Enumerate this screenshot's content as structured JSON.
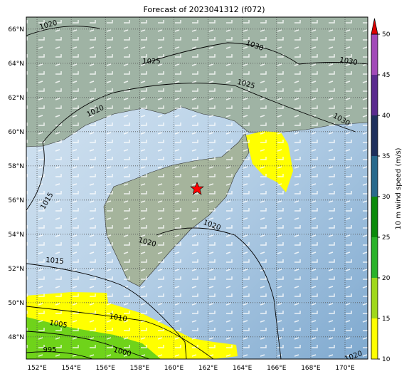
{
  "title": "Forecast of 2023041312 (f072)",
  "map": {
    "lon_range": [
      151.375,
      171.33
    ],
    "lat_range": [
      46.7,
      66.7
    ],
    "grid": true,
    "lon_ticks": [
      {
        "value": 152,
        "label": "152°E"
      },
      {
        "value": 154,
        "label": "154°E"
      },
      {
        "value": 156,
        "label": "156°E"
      },
      {
        "value": 158,
        "label": "158°E"
      },
      {
        "value": 160,
        "label": "160°E"
      },
      {
        "value": 162,
        "label": "162°E"
      },
      {
        "value": 164,
        "label": "164°E"
      },
      {
        "value": 166,
        "label": "166°E"
      },
      {
        "value": 168,
        "label": "168°E"
      },
      {
        "value": 170,
        "label": "170°E"
      }
    ],
    "lat_ticks": [
      {
        "value": 48,
        "label": "48°N"
      },
      {
        "value": 50,
        "label": "50°N"
      },
      {
        "value": 52,
        "label": "52°N"
      },
      {
        "value": 54,
        "label": "54°N"
      },
      {
        "value": 56,
        "label": "56°N"
      },
      {
        "value": 58,
        "label": "58°N"
      },
      {
        "value": 60,
        "label": "60°N"
      },
      {
        "value": 62,
        "label": "62°N"
      },
      {
        "value": 64,
        "label": "64°N"
      },
      {
        "value": 66,
        "label": "66°N"
      }
    ],
    "contour_labels": [
      1020,
      1030,
      1025,
      1030,
      1025,
      1020,
      1030,
      1015,
      1020,
      1020,
      1015,
      1010,
      1005,
      995,
      1000,
      1020
    ]
  },
  "colorbar": {
    "label": "10 m wind speed (m/s)",
    "range": [
      10,
      50
    ],
    "ticks": [
      10,
      15,
      20,
      25,
      30,
      35,
      40,
      45,
      50
    ],
    "colors": [
      "#ffff00",
      "#9fd81c",
      "#2ab22a",
      "#0b8a0b",
      "#28698c",
      "#1e2f5c",
      "#5a2a8e",
      "#a24ab8"
    ],
    "extend_color": "#e00000"
  }
}
